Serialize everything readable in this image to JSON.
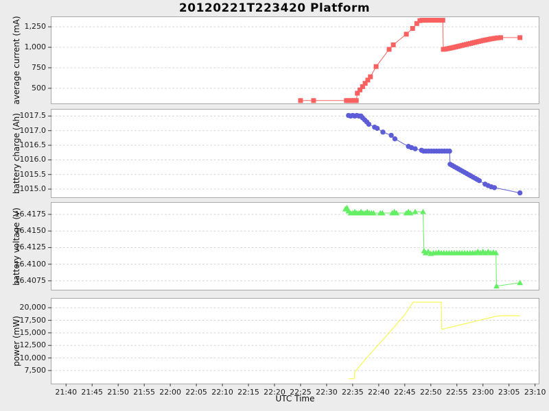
{
  "figure": {
    "background": "#ececec",
    "plot_background": "#ffffff",
    "grid_color": "#d8d8d8",
    "border_color": "#a9a9a9",
    "tick_color": "#3a3a3a"
  },
  "chart_data": {
    "type": "line",
    "title": "20120221T223420 Platform",
    "xlabel": "UTC Time",
    "x_unit": "minutes since 21:40 UTC",
    "xlim": [
      -2.8,
      90.7
    ],
    "grid": "dashed horizontal",
    "legend": "none",
    "xticks": {
      "positions": [
        0,
        5,
        10,
        15,
        20,
        25,
        30,
        35,
        40,
        45,
        50,
        55,
        60,
        65,
        70,
        75,
        80,
        85,
        90
      ],
      "labels": [
        "21:40",
        "21:45",
        "21:50",
        "21:55",
        "22:00",
        "22:05",
        "22:10",
        "22:15",
        "22:20",
        "22:25",
        "22:30",
        "22:35",
        "22:40",
        "22:45",
        "22:50",
        "22:55",
        "23:00",
        "23:05",
        "23:10"
      ]
    },
    "subplots": [
      {
        "id": "avg-current",
        "ylabel": "average current (mA)",
        "color": "#f96161",
        "marker": "square",
        "ylim": [
          315,
          1368
        ],
        "ytick_values": [
          500,
          750,
          1000,
          1250
        ],
        "ytick_labels": [
          "500",
          "750",
          "1,000",
          "1,250"
        ],
        "points": [
          [
            45.0,
            350
          ],
          [
            47.5,
            350
          ],
          [
            53.8,
            350
          ],
          [
            54.2,
            350
          ],
          [
            54.6,
            350
          ],
          [
            55.0,
            350
          ],
          [
            55.4,
            350
          ],
          [
            55.7,
            350
          ],
          [
            55.9,
            440
          ],
          [
            56.4,
            480
          ],
          [
            56.9,
            520
          ],
          [
            57.4,
            560
          ],
          [
            57.9,
            600
          ],
          [
            58.4,
            640
          ],
          [
            59.5,
            765
          ],
          [
            62.0,
            975
          ],
          [
            62.8,
            1030
          ],
          [
            65.3,
            1160
          ],
          [
            66.5,
            1230
          ],
          [
            67.3,
            1290
          ],
          [
            67.9,
            1325
          ],
          [
            68.3,
            1330
          ],
          [
            68.8,
            1330
          ],
          [
            69.3,
            1330
          ],
          [
            69.8,
            1330
          ],
          [
            70.3,
            1330
          ],
          [
            70.8,
            1330
          ],
          [
            71.3,
            1330
          ],
          [
            71.8,
            1330
          ],
          [
            72.3,
            1330
          ],
          [
            72.4,
            975
          ],
          [
            72.8,
            978
          ],
          [
            73.2,
            983
          ],
          [
            73.6,
            988
          ],
          [
            74.0,
            993
          ],
          [
            74.4,
            999
          ],
          [
            74.8,
            1005
          ],
          [
            75.2,
            1011
          ],
          [
            75.6,
            1017
          ],
          [
            76.0,
            1023
          ],
          [
            76.4,
            1029
          ],
          [
            76.8,
            1035
          ],
          [
            77.2,
            1041
          ],
          [
            77.6,
            1047
          ],
          [
            78.0,
            1053
          ],
          [
            78.4,
            1059
          ],
          [
            78.8,
            1065
          ],
          [
            79.2,
            1071
          ],
          [
            79.6,
            1077
          ],
          [
            80.0,
            1083
          ],
          [
            80.4,
            1088
          ],
          [
            80.8,
            1093
          ],
          [
            81.2,
            1098
          ],
          [
            81.6,
            1103
          ],
          [
            82.0,
            1107
          ],
          [
            82.4,
            1111
          ],
          [
            82.8,
            1115
          ],
          [
            83.4,
            1118
          ],
          [
            87.1,
            1118
          ]
        ]
      },
      {
        "id": "battery-charge",
        "ylabel": "battery charge (Ah)",
        "color": "#5d5dd8",
        "marker": "circle",
        "ylim": [
          1014.72,
          1017.72
        ],
        "ytick_values": [
          1015.0,
          1015.5,
          1016.0,
          1016.5,
          1017.0,
          1017.5
        ],
        "ytick_labels": [
          "1015.0",
          "1015.5",
          "1016.0",
          "1016.5",
          "1017.0",
          "1017.5"
        ],
        "points": [
          [
            54.2,
            1017.52
          ],
          [
            54.6,
            1017.5
          ],
          [
            55.0,
            1017.52
          ],
          [
            55.4,
            1017.5
          ],
          [
            55.8,
            1017.52
          ],
          [
            56.2,
            1017.5
          ],
          [
            56.6,
            1017.5
          ],
          [
            56.9,
            1017.44
          ],
          [
            57.3,
            1017.37
          ],
          [
            57.7,
            1017.3
          ],
          [
            58.1,
            1017.22
          ],
          [
            59.2,
            1017.12
          ],
          [
            59.7,
            1017.08
          ],
          [
            60.8,
            1016.95
          ],
          [
            62.4,
            1016.84
          ],
          [
            63.1,
            1016.72
          ],
          [
            65.7,
            1016.46
          ],
          [
            66.3,
            1016.42
          ],
          [
            67.0,
            1016.38
          ],
          [
            68.2,
            1016.33
          ],
          [
            68.6,
            1016.3
          ],
          [
            69.1,
            1016.3
          ],
          [
            69.6,
            1016.3
          ],
          [
            70.1,
            1016.3
          ],
          [
            70.6,
            1016.3
          ],
          [
            71.1,
            1016.3
          ],
          [
            71.6,
            1016.3
          ],
          [
            72.1,
            1016.3
          ],
          [
            72.6,
            1016.3
          ],
          [
            73.1,
            1016.3
          ],
          [
            73.6,
            1016.3
          ],
          [
            73.7,
            1015.85
          ],
          [
            74.1,
            1015.81
          ],
          [
            74.5,
            1015.77
          ],
          [
            74.9,
            1015.73
          ],
          [
            75.3,
            1015.69
          ],
          [
            75.7,
            1015.65
          ],
          [
            76.1,
            1015.61
          ],
          [
            76.5,
            1015.57
          ],
          [
            76.9,
            1015.53
          ],
          [
            77.3,
            1015.49
          ],
          [
            77.7,
            1015.45
          ],
          [
            78.1,
            1015.41
          ],
          [
            78.5,
            1015.37
          ],
          [
            78.9,
            1015.33
          ],
          [
            79.3,
            1015.29
          ],
          [
            80.4,
            1015.17
          ],
          [
            81.0,
            1015.12
          ],
          [
            81.6,
            1015.08
          ],
          [
            82.2,
            1015.05
          ],
          [
            87.1,
            1014.87
          ]
        ]
      },
      {
        "id": "battery-voltage",
        "ylabel": "battery voltage (V)",
        "color": "#63ee63",
        "marker": "triangle",
        "ylim": [
          16.40615,
          16.41925
        ],
        "ytick_values": [
          16.4075,
          16.41,
          16.4125,
          16.415,
          16.4175
        ],
        "ytick_labels": [
          "16.4075",
          "16.4100",
          "16.4125",
          "16.4150",
          "16.4175"
        ],
        "points": [
          [
            53.6,
            16.4183
          ],
          [
            53.9,
            16.4185
          ],
          [
            54.2,
            16.418
          ],
          [
            54.6,
            16.4177
          ],
          [
            55.0,
            16.4177
          ],
          [
            55.4,
            16.4179
          ],
          [
            55.8,
            16.4177
          ],
          [
            56.2,
            16.4177
          ],
          [
            56.6,
            16.4179
          ],
          [
            57.0,
            16.4177
          ],
          [
            57.4,
            16.4177
          ],
          [
            57.8,
            16.4179
          ],
          [
            58.2,
            16.4177
          ],
          [
            58.6,
            16.4177
          ],
          [
            59.0,
            16.4177
          ],
          [
            60.3,
            16.4177
          ],
          [
            60.7,
            16.4177
          ],
          [
            62.6,
            16.4177
          ],
          [
            63.0,
            16.4179
          ],
          [
            63.4,
            16.4177
          ],
          [
            65.3,
            16.4177
          ],
          [
            65.7,
            16.4179
          ],
          [
            66.1,
            16.4177
          ],
          [
            67.0,
            16.4179
          ],
          [
            68.5,
            16.4179
          ],
          [
            68.7,
            16.412
          ],
          [
            69.0,
            16.4117
          ],
          [
            69.5,
            16.4119
          ],
          [
            70.0,
            16.4116
          ],
          [
            70.5,
            16.4117
          ],
          [
            71.0,
            16.4117
          ],
          [
            71.5,
            16.4118
          ],
          [
            72.0,
            16.4117
          ],
          [
            72.5,
            16.4117
          ],
          [
            73.0,
            16.4117
          ],
          [
            73.5,
            16.4117
          ],
          [
            74.0,
            16.4117
          ],
          [
            74.5,
            16.4117
          ],
          [
            75.0,
            16.4117
          ],
          [
            75.5,
            16.4117
          ],
          [
            76.0,
            16.4117
          ],
          [
            76.5,
            16.4117
          ],
          [
            77.0,
            16.4117
          ],
          [
            77.5,
            16.4117
          ],
          [
            78.0,
            16.4117
          ],
          [
            78.5,
            16.4117
          ],
          [
            79.0,
            16.4119
          ],
          [
            79.5,
            16.4117
          ],
          [
            80.0,
            16.4119
          ],
          [
            80.5,
            16.4117
          ],
          [
            81.0,
            16.4119
          ],
          [
            81.5,
            16.4117
          ],
          [
            82.0,
            16.4118
          ],
          [
            82.5,
            16.4117
          ],
          [
            82.6,
            16.4067
          ],
          [
            87.1,
            16.4072
          ]
        ]
      },
      {
        "id": "power",
        "ylabel": "power (mW)",
        "color": "#f7f755",
        "marker": "none",
        "ylim": [
          4900,
          21800
        ],
        "ytick_values": [
          7500,
          10000,
          12500,
          15000,
          17500,
          20000
        ],
        "ytick_labels": [
          "7,500",
          "10,000",
          "12,500",
          "15,000",
          "17,500",
          "20,000"
        ],
        "points": [
          [
            54.2,
            5900
          ],
          [
            55.3,
            5900
          ],
          [
            55.4,
            7200
          ],
          [
            57.5,
            9800
          ],
          [
            60.0,
            12700
          ],
          [
            62.5,
            15600
          ],
          [
            65.0,
            18600
          ],
          [
            66.6,
            21100
          ],
          [
            72.0,
            21100
          ],
          [
            72.1,
            15700
          ],
          [
            73.5,
            16050
          ],
          [
            75.5,
            16550
          ],
          [
            77.5,
            17050
          ],
          [
            79.5,
            17550
          ],
          [
            81.5,
            18050
          ],
          [
            82.8,
            18350
          ],
          [
            83.5,
            18400
          ],
          [
            87.1,
            18400
          ]
        ]
      }
    ]
  }
}
